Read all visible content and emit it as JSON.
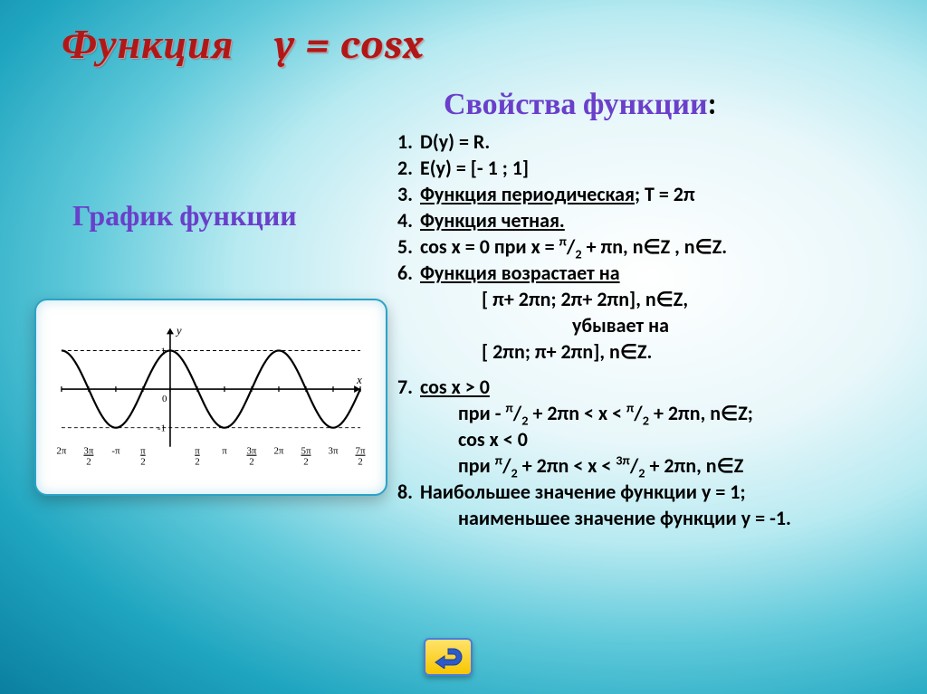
{
  "title": "Функция    y = cosx",
  "graph_heading": "График функции",
  "properties_heading": "Свойства функции",
  "colon": ":",
  "items": {
    "n1": "1.",
    "t1": "D(y) = R.",
    "n2": "2.",
    "t2": " E(y) = [- 1 ; 1]",
    "n3": "3.",
    "t3a": "Функция периодическая",
    "t3b": "; T = 2π",
    "n4": "4.",
    "t4": " Функция четная.",
    "n5": "5.",
    "t5a": "  cos x  = 0 при x = ",
    "t5pi": "π",
    "t5slash": "/",
    "t5two": "2",
    "t5b": " + πn, n∈Z , n∈Z.",
    "n6": "6.",
    "t6": "   Функция возрастает на",
    "t6b": "[ π+ 2πn; 2π+ 2πn], n∈Z,",
    "t6c": "убывает на",
    "t6d": "[ 2πn;  π+ 2πn], n∈Z.",
    "n7": "7.",
    "t7": "cos x > 0",
    "t7b_a": "при  - ",
    "t7b_b": " + 2πn < x <  ",
    "t7b_c": " + 2πn, n∈Z;",
    "t7c": "cos x < 0",
    "t7d_a": "при    ",
    "t7d_b": " + 2πn < x < ",
    "t7d_3": "3π",
    "t7d_c": " + 2πn, n∈Z",
    "n8": "8.",
    "t8a": " Наибольшее значение функции y = 1;",
    "t8b": "наименьшее значение функции y = -1."
  },
  "chart": {
    "type": "line",
    "function": "cos",
    "x_range_pi": [
      -6.2832,
      11.0
    ],
    "ylim": [
      -1.4,
      1.4
    ],
    "background_color": "#ffffff",
    "axis_color": "#000000",
    "curve_color": "#000000",
    "dash_color": "#000000",
    "curve_width": 2.2,
    "dash_width": 1,
    "axis_label_y": "y",
    "axis_label_x": "x",
    "tick_label_fontsize": 11,
    "xticks": [
      {
        "x": -6.2832,
        "top": "2π",
        "bot": ""
      },
      {
        "x": -4.7124,
        "top": "3π",
        "bot": "2"
      },
      {
        "x": -3.1416,
        "top": "-π",
        "bot": ""
      },
      {
        "x": -1.5708,
        "top": "π",
        "bot": "2"
      },
      {
        "x": 0,
        "top": "0",
        "bot": ""
      },
      {
        "x": 1.5708,
        "top": "π",
        "bot": "2"
      },
      {
        "x": 3.1416,
        "top": "π",
        "bot": ""
      },
      {
        "x": 4.7124,
        "top": "3π",
        "bot": "2"
      },
      {
        "x": 6.2832,
        "top": "2π",
        "bot": ""
      },
      {
        "x": 7.854,
        "top": "5π",
        "bot": "2"
      },
      {
        "x": 9.4248,
        "top": "3π",
        "bot": ""
      },
      {
        "x": 10.996,
        "top": "7π",
        "bot": "2"
      }
    ],
    "yticks": [
      {
        "y": 1,
        "label": "1"
      },
      {
        "y": -1,
        "label": "-1"
      }
    ]
  },
  "colors": {
    "title": "#b01818",
    "heading": "#6a3fca",
    "text": "#000000",
    "card_border": "#2aa3c8",
    "button_border": "#4a7de0",
    "button_gradient_top": "#ffe36b",
    "button_gradient_bottom": "#f7c600",
    "arrow_fill": "#2d5acb"
  }
}
